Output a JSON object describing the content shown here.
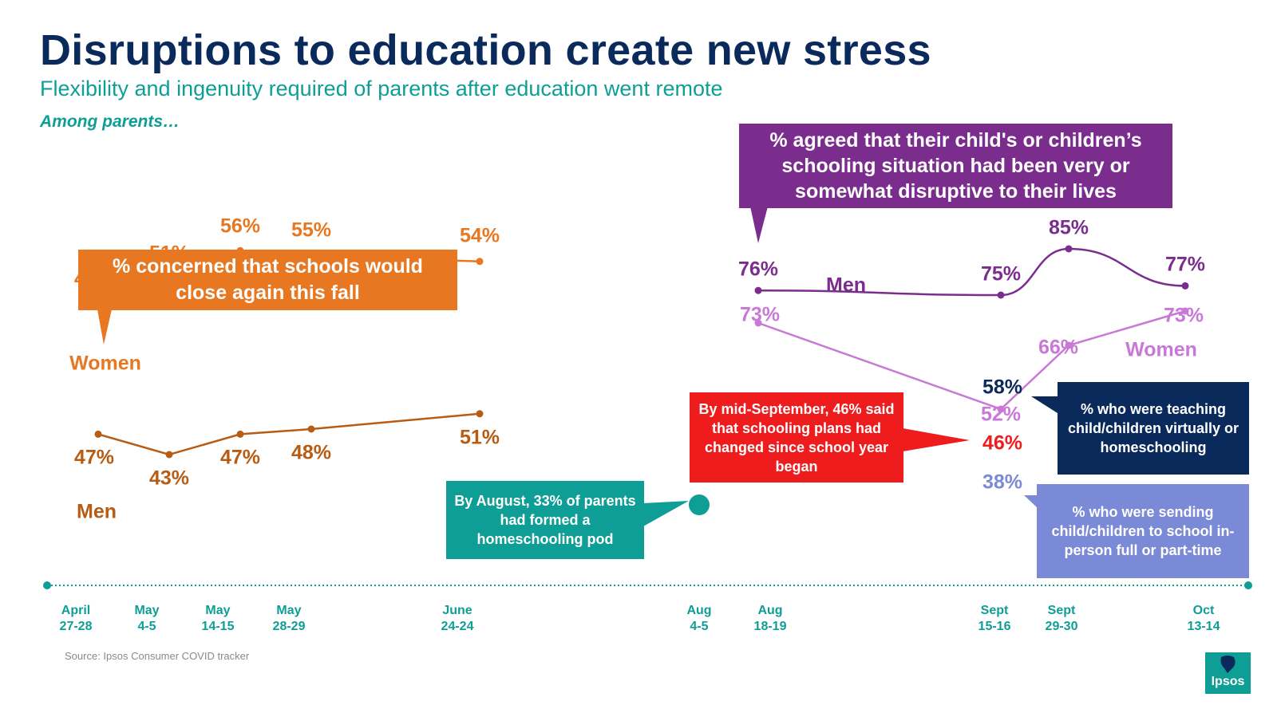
{
  "title": "Disruptions to education create new stress",
  "subtitle": "Flexibility and ingenuity required of parents after education went remote",
  "among": "Among parents…",
  "source": "Source: Ipsos Consumer COVID tracker",
  "logo_text": "Ipsos",
  "colors": {
    "navy": "#0b2a5c",
    "teal": "#0e9e96",
    "orange": "#e87722",
    "dark_orange": "#b85c14",
    "purple": "#7b2d8e",
    "light_purple": "#c878d6",
    "red": "#ee1c1c",
    "periwinkle": "#7b8ad6"
  },
  "callouts": {
    "concerned": "% concerned that schools would close again this fall",
    "disruptive": "% agreed that their child's or children’s schooling situation had been very or somewhat disruptive to their lives",
    "plans_changed": "By mid-September, 46% said that schooling plans had changed since school year began",
    "pod": "By August, 33% of parents had formed a homeschooling pod",
    "virtual": "% who were teaching child/children virtually or homeschooling",
    "in_person": "% who were sending child/children to school in-person full or part-time"
  },
  "chart_data": {
    "type": "line",
    "title": "Disruptions to education create new stress",
    "timeline": [
      {
        "line1": "April",
        "line2": "27-28"
      },
      {
        "line1": "May",
        "line2": "4-5"
      },
      {
        "line1": "May",
        "line2": "14-15"
      },
      {
        "line1": "May",
        "line2": "28-29"
      },
      {
        "line1": "June",
        "line2": "24-24"
      },
      {
        "line1": "Aug",
        "line2": "4-5"
      },
      {
        "line1": "Aug",
        "line2": "18-19"
      },
      {
        "line1": "Sept",
        "line2": "15-16"
      },
      {
        "line1": "Sept",
        "line2": "29-30"
      },
      {
        "line1": "Oct",
        "line2": "13-14"
      }
    ],
    "concerned_close_again": {
      "series": [
        {
          "name": "Women",
          "x_index": [
            0,
            1,
            2,
            3,
            4
          ],
          "values": [
            46,
            51,
            56,
            55,
            54
          ],
          "labels": [
            "46%",
            "51%",
            "56%",
            "55%",
            "54%"
          ]
        },
        {
          "name": "Men",
          "x_index": [
            0,
            1,
            2,
            3,
            4
          ],
          "values": [
            47,
            43,
            47,
            48,
            51
          ],
          "labels": [
            "47%",
            "43%",
            "47%",
            "48%",
            "51%"
          ]
        }
      ]
    },
    "disruptive": {
      "series": [
        {
          "name": "Men",
          "x_index": [
            6,
            7,
            8,
            9
          ],
          "values": [
            76,
            75,
            85,
            77
          ],
          "labels": [
            "76%",
            "75%",
            "85%",
            "77%"
          ]
        },
        {
          "name": "Women",
          "x_index": [
            6,
            7,
            8,
            9
          ],
          "values": [
            73,
            52,
            66,
            73
          ],
          "labels": [
            "73%",
            "52%",
            "66%",
            "73%"
          ]
        }
      ]
    },
    "sept_15_16_points": [
      {
        "label": "58%",
        "value": 58,
        "measure": "virtual"
      },
      {
        "label": "46%",
        "value": 46,
        "measure": "plans_changed"
      },
      {
        "label": "38%",
        "value": 38,
        "measure": "in_person"
      }
    ],
    "pod_point": {
      "x_index": 5,
      "value": 33
    }
  }
}
